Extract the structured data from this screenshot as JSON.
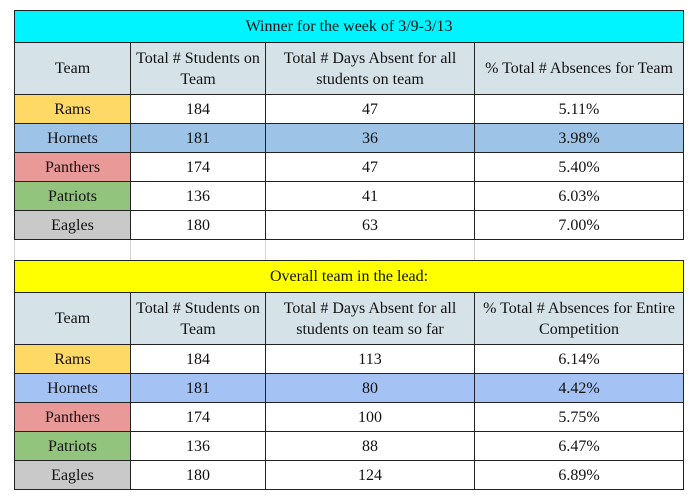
{
  "tables": [
    {
      "title": "Winner for the week of 3/9-3/13",
      "headers": [
        "Team",
        "Total # Students on Team",
        "Total # Days Absent for all students on team",
        "% Total # Absences for Team"
      ],
      "rows": [
        [
          "Rams",
          "184",
          "47",
          "5.11%"
        ],
        [
          "Hornets",
          "181",
          "36",
          "3.98%"
        ],
        [
          "Panthers",
          "174",
          "47",
          "5.40%"
        ],
        [
          "Patriots",
          "136",
          "41",
          "6.03%"
        ],
        [
          "Eagles",
          "180",
          "63",
          "7.00%"
        ]
      ]
    },
    {
      "title": "Overall team in the lead:",
      "headers": [
        "Team",
        "Total # Students on Team",
        "Total # Days Absent for all students on team so far",
        "% Total # Absences for Entire Competition"
      ],
      "rows": [
        [
          "Rams",
          "184",
          "113",
          "6.14%"
        ],
        [
          "Hornets",
          "181",
          "80",
          "4.42%"
        ],
        [
          "Panthers",
          "174",
          "100",
          "5.75%"
        ],
        [
          "Patriots",
          "136",
          "88",
          "6.47%"
        ],
        [
          "Eagles",
          "180",
          "124",
          "6.89%"
        ]
      ]
    }
  ]
}
